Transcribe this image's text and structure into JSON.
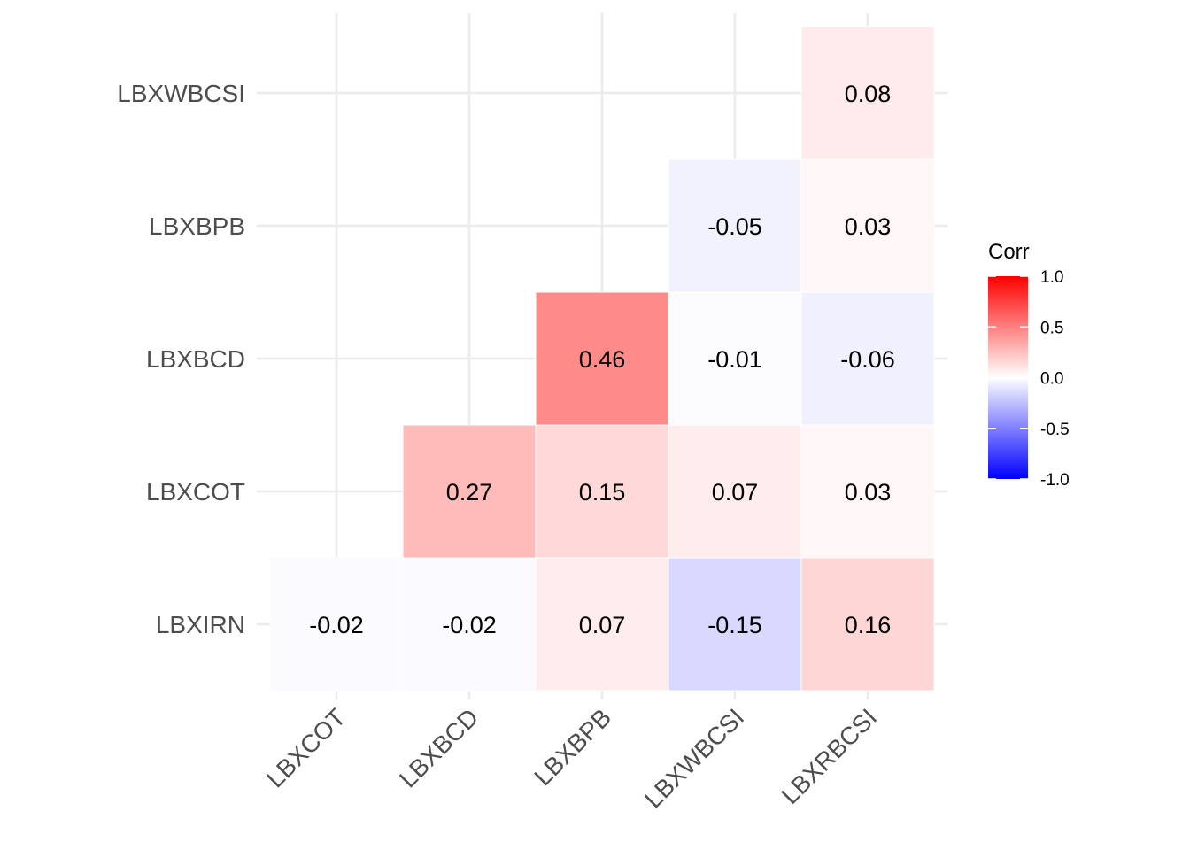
{
  "chart_data": {
    "type": "heatmap",
    "title": "",
    "xlabel": "",
    "ylabel": "",
    "x_categories": [
      "LBXCOT",
      "LBXBCD",
      "LBXBPB",
      "LBXWBCSI",
      "LBXRBCSI"
    ],
    "y_categories": [
      "LBXIRN",
      "LBXCOT",
      "LBXBCD",
      "LBXBPB",
      "LBXWBCSI"
    ],
    "cells": [
      {
        "x": "LBXCOT",
        "y": "LBXIRN",
        "value": -0.02,
        "label": "-0.02"
      },
      {
        "x": "LBXBCD",
        "y": "LBXIRN",
        "value": -0.02,
        "label": "-0.02"
      },
      {
        "x": "LBXBPB",
        "y": "LBXIRN",
        "value": 0.07,
        "label": "0.07"
      },
      {
        "x": "LBXWBCSI",
        "y": "LBXIRN",
        "value": -0.15,
        "label": "-0.15"
      },
      {
        "x": "LBXRBCSI",
        "y": "LBXIRN",
        "value": 0.16,
        "label": "0.16"
      },
      {
        "x": "LBXBCD",
        "y": "LBXCOT",
        "value": 0.27,
        "label": "0.27"
      },
      {
        "x": "LBXBPB",
        "y": "LBXCOT",
        "value": 0.15,
        "label": "0.15"
      },
      {
        "x": "LBXWBCSI",
        "y": "LBXCOT",
        "value": 0.07,
        "label": "0.07"
      },
      {
        "x": "LBXRBCSI",
        "y": "LBXCOT",
        "value": 0.03,
        "label": "0.03"
      },
      {
        "x": "LBXBPB",
        "y": "LBXBCD",
        "value": 0.46,
        "label": "0.46"
      },
      {
        "x": "LBXWBCSI",
        "y": "LBXBCD",
        "value": -0.01,
        "label": "-0.01"
      },
      {
        "x": "LBXRBCSI",
        "y": "LBXBCD",
        "value": -0.06,
        "label": "-0.06"
      },
      {
        "x": "LBXWBCSI",
        "y": "LBXBPB",
        "value": -0.05,
        "label": "-0.05"
      },
      {
        "x": "LBXRBCSI",
        "y": "LBXBPB",
        "value": 0.03,
        "label": "0.03"
      },
      {
        "x": "LBXRBCSI",
        "y": "LBXWBCSI",
        "value": 0.08,
        "label": "0.08"
      }
    ],
    "color_scale": {
      "low": "#0000ff",
      "mid": "#ffffff",
      "high": "#ff0000",
      "limits": [
        -1,
        1
      ]
    },
    "legend": {
      "title": "Corr",
      "placement": "right",
      "ticks": [
        1.0,
        0.5,
        0.0,
        -0.5,
        -1.0
      ],
      "tick_labels": [
        "1.0",
        "0.5",
        "0.0",
        "-0.5",
        "-1.0"
      ]
    },
    "grid": true
  }
}
